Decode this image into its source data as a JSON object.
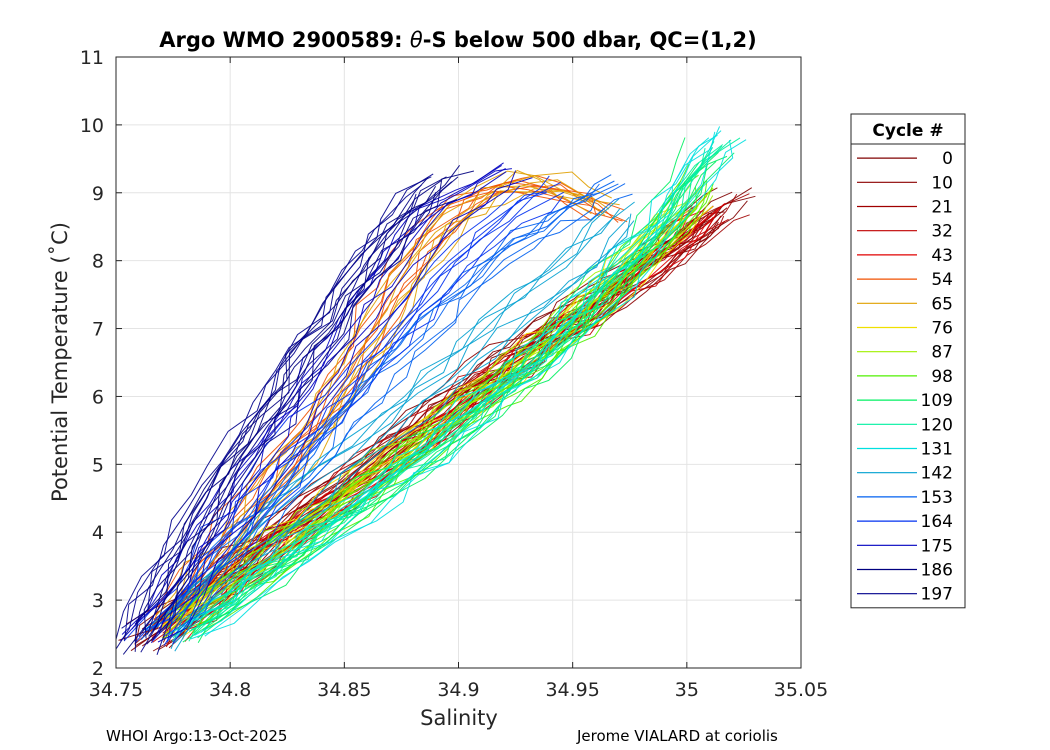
{
  "chart_data": {
    "type": "line",
    "title_prefix": "Argo WMO 2900589: ",
    "title_theta": "θ",
    "title_suffix": "-S below 500 dbar,  QC=(1,2)",
    "xlabel": "Salinity",
    "ylabel": "Potential Temperature (˚C)",
    "xlim": [
      34.75,
      35.05
    ],
    "ylim": [
      2,
      11
    ],
    "x_ticks": [
      "34.75",
      "34.8",
      "34.85",
      "34.9",
      "34.95",
      "35",
      "35.05"
    ],
    "y_ticks": [
      "2",
      "3",
      "4",
      "5",
      "6",
      "7",
      "8",
      "9",
      "10",
      "11"
    ],
    "grid": true,
    "legend_title": "Cycle #",
    "legend_position": "outside-right",
    "series": [
      {
        "name": "0",
        "color": "#800000",
        "x": [
          34.762,
          34.772,
          34.78,
          34.79,
          34.798,
          34.806,
          34.816,
          34.826,
          34.838,
          34.85,
          34.862,
          34.874,
          34.886,
          34.898,
          34.908,
          34.918,
          34.926,
          34.936,
          34.944,
          34.956,
          34.966,
          34.976,
          34.986,
          34.996,
          35.006,
          35.016,
          35.024
        ],
        "y": [
          2.35,
          2.6,
          2.85,
          3.1,
          3.35,
          3.6,
          3.85,
          4.15,
          4.45,
          4.75,
          5.05,
          5.35,
          5.65,
          5.95,
          6.2,
          6.45,
          6.7,
          6.9,
          7.1,
          7.3,
          7.55,
          7.8,
          8.05,
          8.3,
          8.55,
          8.8,
          8.95
        ]
      },
      {
        "name": "10",
        "color": "#8c0000",
        "x": [
          34.765,
          34.775,
          34.784,
          34.794,
          34.803,
          34.812,
          34.823,
          34.834,
          34.846,
          34.858,
          34.87,
          34.882,
          34.893,
          34.904,
          34.914,
          34.924,
          34.934,
          34.944,
          34.954,
          34.964,
          34.974,
          34.984,
          34.994,
          35.004,
          35.012
        ],
        "y": [
          2.45,
          2.7,
          2.95,
          3.2,
          3.45,
          3.7,
          4.0,
          4.3,
          4.6,
          4.9,
          5.2,
          5.5,
          5.8,
          6.05,
          6.3,
          6.55,
          6.8,
          7.0,
          7.2,
          7.45,
          7.7,
          7.95,
          8.2,
          8.45,
          8.7
        ]
      },
      {
        "name": "21",
        "color": "#a00000",
        "x": [
          34.768,
          34.778,
          34.788,
          34.798,
          34.808,
          34.818,
          34.83,
          34.842,
          34.854,
          34.866,
          34.878,
          34.89,
          34.9,
          34.91,
          34.92,
          34.93,
          34.94,
          34.95,
          34.96,
          34.97,
          34.98,
          34.99,
          35.0,
          35.01,
          35.02
        ],
        "y": [
          2.5,
          2.8,
          3.05,
          3.3,
          3.55,
          3.85,
          4.15,
          4.45,
          4.75,
          5.05,
          5.35,
          5.65,
          5.9,
          6.15,
          6.4,
          6.65,
          6.9,
          7.1,
          7.3,
          7.55,
          7.8,
          8.05,
          8.3,
          8.55,
          8.8
        ]
      },
      {
        "name": "32",
        "color": "#c00000",
        "x": [
          34.772,
          34.782,
          34.792,
          34.802,
          34.814,
          34.826,
          34.838,
          34.85,
          34.862,
          34.874,
          34.886,
          34.896,
          34.906,
          34.916,
          34.926,
          34.936,
          34.946,
          34.956,
          34.966,
          34.976,
          34.986,
          34.996,
          35.006
        ],
        "y": [
          2.55,
          2.85,
          3.15,
          3.45,
          3.75,
          4.05,
          4.35,
          4.65,
          4.95,
          5.25,
          5.55,
          5.85,
          6.1,
          6.35,
          6.6,
          6.85,
          7.05,
          7.3,
          7.55,
          7.8,
          8.1,
          8.4,
          8.7
        ]
      },
      {
        "name": "43",
        "color": "#e00000",
        "x": [
          34.774,
          34.784,
          34.795,
          34.806,
          34.818,
          34.83,
          34.842,
          34.854,
          34.866,
          34.878,
          34.89,
          34.9,
          34.91,
          34.92,
          34.93,
          34.94,
          34.95,
          34.96,
          34.97,
          34.98,
          34.99,
          35.0,
          35.008
        ],
        "y": [
          2.6,
          2.9,
          3.2,
          3.5,
          3.8,
          4.1,
          4.4,
          4.7,
          5.0,
          5.3,
          5.6,
          5.9,
          6.15,
          6.4,
          6.65,
          6.9,
          7.15,
          7.4,
          7.65,
          7.9,
          8.2,
          8.5,
          8.8
        ]
      },
      {
        "name": "54",
        "color": "#f05000",
        "x": [
          34.77,
          34.778,
          34.786,
          34.795,
          34.804,
          34.813,
          34.822,
          34.832,
          34.842,
          34.851,
          34.858,
          34.866,
          34.874,
          34.882,
          34.89,
          34.9,
          34.91,
          34.922,
          34.934,
          34.946,
          34.956,
          34.966
        ],
        "y": [
          2.6,
          3.0,
          3.4,
          3.8,
          4.2,
          4.6,
          5.0,
          5.45,
          5.9,
          6.35,
          6.8,
          7.25,
          7.7,
          8.1,
          8.45,
          8.75,
          8.95,
          9.1,
          9.05,
          8.95,
          8.8,
          8.6
        ]
      },
      {
        "name": "65",
        "color": "#e0a000",
        "x": [
          34.772,
          34.78,
          34.789,
          34.798,
          34.807,
          34.816,
          34.826,
          34.836,
          34.846,
          34.854,
          34.862,
          34.87,
          34.878,
          34.886,
          34.895,
          34.905,
          34.916,
          34.928,
          34.94,
          34.952,
          34.962
        ],
        "y": [
          2.65,
          3.05,
          3.45,
          3.85,
          4.25,
          4.65,
          5.1,
          5.55,
          6.0,
          6.45,
          6.9,
          7.35,
          7.8,
          8.2,
          8.55,
          8.85,
          9.05,
          9.2,
          9.15,
          9.0,
          8.8
        ]
      },
      {
        "name": "76",
        "color": "#f0e000",
        "x": [
          34.775,
          34.786,
          34.797,
          34.808,
          34.82,
          34.832,
          34.844,
          34.856,
          34.868,
          34.88,
          34.892,
          34.904,
          34.914,
          34.924,
          34.934,
          34.944,
          34.954,
          34.964,
          34.974,
          34.984,
          34.994,
          35.004
        ],
        "y": [
          2.65,
          2.95,
          3.25,
          3.55,
          3.85,
          4.15,
          4.45,
          4.75,
          5.05,
          5.35,
          5.65,
          5.95,
          6.2,
          6.45,
          6.7,
          6.95,
          7.25,
          7.55,
          7.85,
          8.15,
          8.45,
          8.75
        ]
      },
      {
        "name": "87",
        "color": "#a0f000",
        "x": [
          34.778,
          34.789,
          34.8,
          34.812,
          34.824,
          34.836,
          34.848,
          34.86,
          34.872,
          34.884,
          34.896,
          34.908,
          34.918,
          34.928,
          34.938,
          34.948,
          34.958,
          34.968,
          34.978,
          34.988,
          34.998,
          35.006
        ],
        "y": [
          2.6,
          2.9,
          3.2,
          3.5,
          3.8,
          4.1,
          4.4,
          4.7,
          5.0,
          5.3,
          5.6,
          5.9,
          6.15,
          6.4,
          6.7,
          7.0,
          7.3,
          7.6,
          7.9,
          8.25,
          8.6,
          8.95
        ]
      },
      {
        "name": "98",
        "color": "#50f000",
        "x": [
          34.78,
          34.791,
          34.802,
          34.814,
          34.826,
          34.838,
          34.85,
          34.862,
          34.874,
          34.886,
          34.898,
          34.91,
          34.92,
          34.93,
          34.94,
          34.95,
          34.96,
          34.97,
          34.98,
          34.99,
          34.998,
          35.004
        ],
        "y": [
          2.55,
          2.85,
          3.15,
          3.45,
          3.75,
          4.05,
          4.35,
          4.65,
          4.95,
          5.25,
          5.55,
          5.85,
          6.1,
          6.4,
          6.7,
          7.0,
          7.35,
          7.7,
          8.05,
          8.45,
          8.85,
          9.2
        ]
      },
      {
        "name": "109",
        "color": "#00f060",
        "x": [
          34.781,
          34.792,
          34.804,
          34.816,
          34.828,
          34.84,
          34.852,
          34.864,
          34.876,
          34.888,
          34.9,
          34.91,
          34.92,
          34.93,
          34.94,
          34.95,
          34.96,
          34.97,
          34.98,
          34.99,
          34.998,
          35.004,
          35.01
        ],
        "y": [
          2.5,
          2.8,
          3.1,
          3.4,
          3.7,
          4.0,
          4.3,
          4.6,
          4.9,
          5.2,
          5.5,
          5.8,
          6.1,
          6.4,
          6.7,
          7.0,
          7.35,
          7.75,
          8.15,
          8.55,
          8.95,
          9.3,
          9.6
        ]
      },
      {
        "name": "120",
        "color": "#00f0a0",
        "x": [
          34.782,
          34.794,
          34.806,
          34.818,
          34.83,
          34.842,
          34.854,
          34.866,
          34.878,
          34.89,
          34.9,
          34.91,
          34.92,
          34.93,
          34.94,
          34.95,
          34.96,
          34.97,
          34.98,
          34.99,
          34.998,
          35.006,
          35.014
        ],
        "y": [
          2.55,
          2.85,
          3.15,
          3.45,
          3.75,
          4.05,
          4.35,
          4.65,
          4.95,
          5.25,
          5.55,
          5.85,
          6.15,
          6.45,
          6.75,
          7.05,
          7.4,
          7.8,
          8.2,
          8.6,
          9.0,
          9.4,
          9.75
        ]
      },
      {
        "name": "131",
        "color": "#00e0e0",
        "x": [
          34.78,
          34.792,
          34.804,
          34.816,
          34.828,
          34.84,
          34.852,
          34.864,
          34.876,
          34.886,
          34.896,
          34.906,
          34.916,
          34.926,
          34.936,
          34.946,
          34.956,
          34.966,
          34.976,
          34.986,
          34.994,
          35.002,
          35.01,
          35.016
        ],
        "y": [
          2.5,
          2.8,
          3.1,
          3.4,
          3.7,
          4.0,
          4.3,
          4.6,
          4.9,
          5.2,
          5.5,
          5.8,
          6.1,
          6.4,
          6.7,
          7.0,
          7.35,
          7.7,
          8.05,
          8.4,
          8.8,
          9.2,
          9.6,
          9.9
        ]
      },
      {
        "name": "142",
        "color": "#00a0d0",
        "x": [
          34.77,
          34.78,
          34.79,
          34.8,
          34.811,
          34.822,
          34.834,
          34.846,
          34.858,
          34.87,
          34.882,
          34.894,
          34.906,
          34.918,
          34.93,
          34.942,
          34.954,
          34.964,
          34.972
        ],
        "y": [
          2.5,
          2.85,
          3.2,
          3.55,
          3.9,
          4.25,
          4.6,
          4.95,
          5.3,
          5.65,
          6.0,
          6.35,
          6.7,
          7.05,
          7.4,
          7.75,
          8.1,
          8.45,
          8.8
        ]
      },
      {
        "name": "153",
        "color": "#0060f0",
        "x": [
          34.766,
          34.776,
          34.786,
          34.796,
          34.806,
          34.816,
          34.826,
          34.836,
          34.846,
          34.856,
          34.866,
          34.876,
          34.886,
          34.896,
          34.906,
          34.916,
          34.926,
          34.936,
          34.946,
          34.956,
          34.966
        ],
        "y": [
          2.5,
          2.85,
          3.2,
          3.6,
          4.0,
          4.4,
          4.8,
          5.2,
          5.6,
          6.0,
          6.4,
          6.75,
          7.1,
          7.45,
          7.75,
          8.05,
          8.3,
          8.55,
          8.75,
          8.95,
          9.1
        ]
      },
      {
        "name": "164",
        "color": "#0030f0",
        "x": [
          34.764,
          34.773,
          34.782,
          34.791,
          34.8,
          34.809,
          34.818,
          34.828,
          34.838,
          34.848,
          34.858,
          34.868,
          34.878,
          34.888,
          34.898,
          34.908,
          34.918,
          34.928,
          34.938
        ],
        "y": [
          2.5,
          2.85,
          3.25,
          3.65,
          4.05,
          4.45,
          4.85,
          5.25,
          5.65,
          6.05,
          6.45,
          6.85,
          7.25,
          7.65,
          8.0,
          8.35,
          8.65,
          8.9,
          9.1
        ]
      },
      {
        "name": "175",
        "color": "#0000c0",
        "x": [
          34.762,
          34.77,
          34.778,
          34.786,
          34.794,
          34.802,
          34.81,
          34.818,
          34.826,
          34.834,
          34.842,
          34.85,
          34.858,
          34.866,
          34.874,
          34.882,
          34.892,
          34.902,
          34.912,
          34.924
        ],
        "y": [
          2.45,
          2.8,
          3.2,
          3.6,
          4.0,
          4.4,
          4.8,
          5.2,
          5.6,
          6.0,
          6.4,
          6.8,
          7.2,
          7.6,
          8.0,
          8.35,
          8.65,
          8.9,
          9.1,
          9.3
        ]
      },
      {
        "name": "186",
        "color": "#000080",
        "x": [
          34.76,
          34.766,
          34.772,
          34.779,
          34.786,
          34.794,
          34.802,
          34.81,
          34.818,
          34.826,
          34.834,
          34.842,
          34.85,
          34.858,
          34.866,
          34.873,
          34.88,
          34.888,
          34.896
        ],
        "y": [
          2.45,
          2.85,
          3.3,
          3.75,
          4.2,
          4.65,
          5.1,
          5.5,
          5.9,
          6.3,
          6.7,
          7.1,
          7.5,
          7.85,
          8.2,
          8.55,
          8.85,
          9.1,
          9.3
        ]
      },
      {
        "name": "197",
        "color": "#00008c",
        "x": [
          34.758,
          34.764,
          34.771,
          34.778,
          34.786,
          34.794,
          34.802,
          34.81,
          34.818,
          34.826,
          34.834,
          34.842,
          34.85,
          34.858,
          34.866,
          34.874,
          34.882,
          34.89
        ],
        "y": [
          2.4,
          2.8,
          3.25,
          3.7,
          4.15,
          4.6,
          5.05,
          5.45,
          5.85,
          6.25,
          6.65,
          7.05,
          7.45,
          7.85,
          8.2,
          8.55,
          8.85,
          9.1
        ]
      }
    ]
  },
  "footer": {
    "left": "WHOI Argo:13-Oct-2025",
    "right": "Jerome VIALARD at coriolis"
  }
}
